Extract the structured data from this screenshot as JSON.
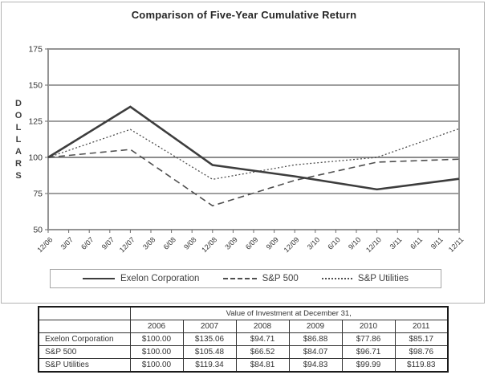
{
  "chart_data": {
    "type": "line",
    "title": "Comparison of Five-Year Cumulative Return",
    "ylabel": "DOLLARS",
    "xlabel": "",
    "ylim": [
      50,
      175
    ],
    "yticks": [
      50,
      75,
      100,
      125,
      150,
      175
    ],
    "grid": "horizontal",
    "legend_position": "bottom",
    "x_ticks": [
      "12/06",
      "3/07",
      "6/07",
      "9/07",
      "12/07",
      "3/08",
      "6/08",
      "9/08",
      "12/08",
      "3/09",
      "6/09",
      "9/09",
      "12/09",
      "3/10",
      "6/10",
      "9/10",
      "12/10",
      "3/11",
      "6/11",
      "9/11",
      "12/11"
    ],
    "data_point_tick_indices": [
      0,
      4,
      8,
      12,
      16,
      20
    ],
    "series": [
      {
        "name": "Exelon Corporation",
        "style": "solid",
        "color": "#3d3d3d",
        "width": 2.6,
        "values": [
          100.0,
          135.06,
          94.71,
          86.88,
          77.86,
          85.17
        ]
      },
      {
        "name": "S&P 500",
        "style": "dashed",
        "color": "#4f4f4f",
        "width": 1.6,
        "values": [
          100.0,
          105.48,
          66.52,
          84.07,
          96.71,
          98.76
        ]
      },
      {
        "name": "S&P Utilities",
        "style": "dotted",
        "color": "#4f4f4f",
        "width": 1.3,
        "values": [
          100.0,
          119.34,
          84.81,
          94.83,
          99.99,
          119.83
        ]
      }
    ]
  },
  "table": {
    "header_group": "Value of Investment at December 31,",
    "years": [
      "2006",
      "2007",
      "2008",
      "2009",
      "2010",
      "2011"
    ],
    "rows": [
      {
        "label": "Exelon Corporation",
        "values": [
          "$100.00",
          "$135.06",
          "$94.71",
          "$86.88",
          "$77.86",
          "$85.17"
        ]
      },
      {
        "label": "S&P 500",
        "values": [
          "$100.00",
          "$105.48",
          "$66.52",
          "$84.07",
          "$96.71",
          "$98.76"
        ]
      },
      {
        "label": "S&P Utilities",
        "values": [
          "$100.00",
          "$119.34",
          "$84.81",
          "$94.83",
          "$99.99",
          "$119.83"
        ]
      }
    ]
  },
  "colors": {
    "plot_border": "#949494",
    "gridline": "#3f3f3f",
    "baseline_100": "#8c8c8c",
    "text": "#333333",
    "table_border": "#1a1a1a"
  }
}
